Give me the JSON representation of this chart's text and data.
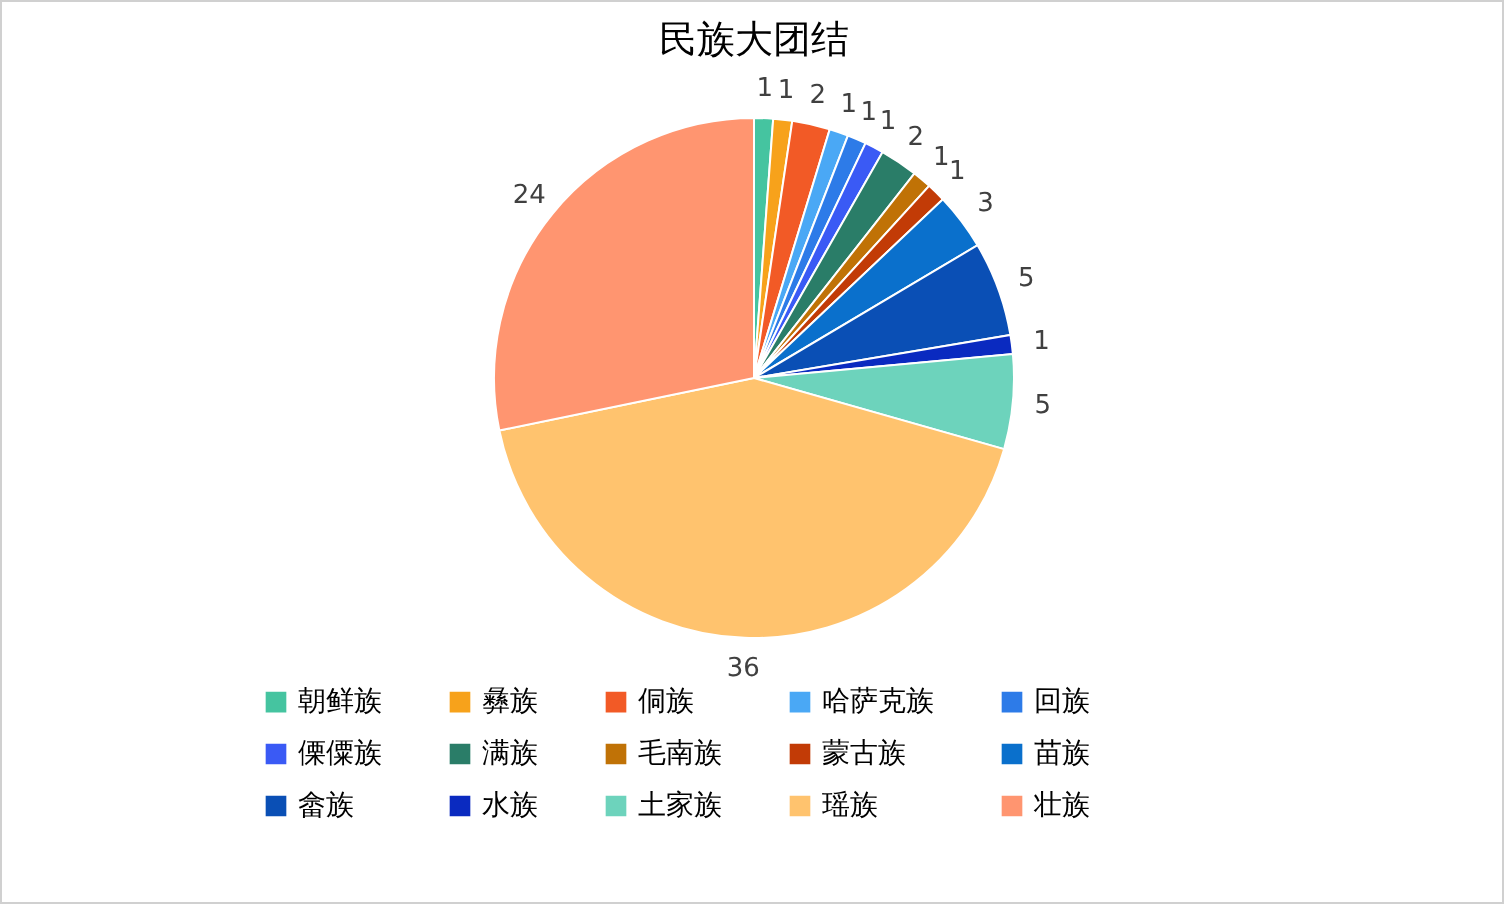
{
  "chart_data": {
    "type": "pie",
    "title": "民族大团结",
    "categories": [
      "朝鲜族",
      "彝族",
      "侗族",
      "哈萨克族",
      "回族",
      "傈僳族",
      "满族",
      "毛南族",
      "蒙古族",
      "苗族",
      "畲族",
      "水族",
      "土家族",
      "瑶族",
      "壮族"
    ],
    "values": [
      1,
      1,
      2,
      1,
      1,
      1,
      2,
      1,
      1,
      3,
      5,
      1,
      5,
      36,
      24
    ],
    "colors": [
      "#45c4a0",
      "#f7a21b",
      "#f25a26",
      "#4aa8f5",
      "#2d7be8",
      "#3a5af5",
      "#2a7d68",
      "#c07206",
      "#c23b06",
      "#0a70cc",
      "#0a4fb5",
      "#0a2ac0",
      "#6dd3bc",
      "#ffc36e",
      "#ff9570"
    ],
    "data_labels": true,
    "legend": "bottom"
  }
}
